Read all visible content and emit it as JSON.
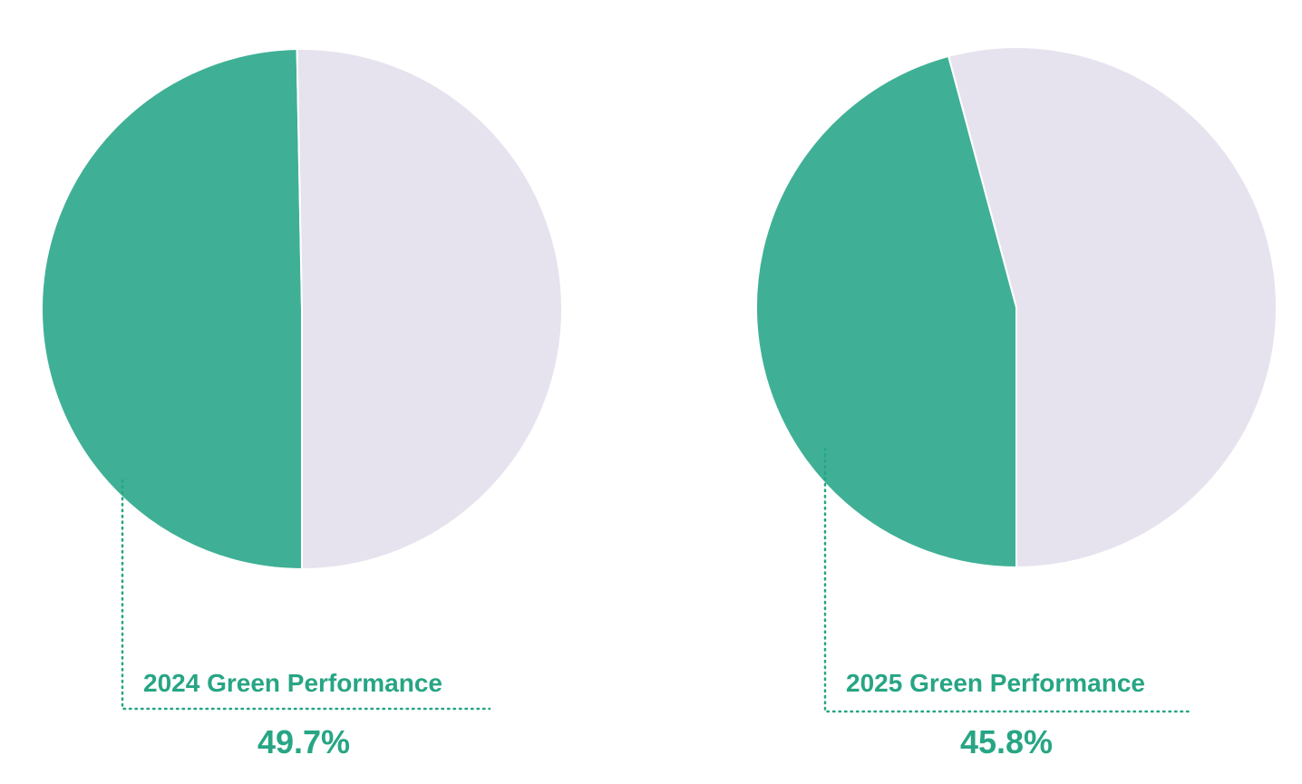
{
  "chart_data": [
    {
      "type": "pie",
      "title": "2024 Green Performance",
      "values": [
        49.7,
        50.3
      ],
      "value_labels": [
        "49.7%",
        null
      ],
      "colors": [
        "#3fb095",
        "#e6e3ef"
      ]
    },
    {
      "type": "pie",
      "title": "2025 Green Performance",
      "values": [
        45.8,
        54.2
      ],
      "value_labels": [
        "45.8%",
        null
      ],
      "colors": [
        "#3fb095",
        "#e6e3ef"
      ]
    }
  ]
}
